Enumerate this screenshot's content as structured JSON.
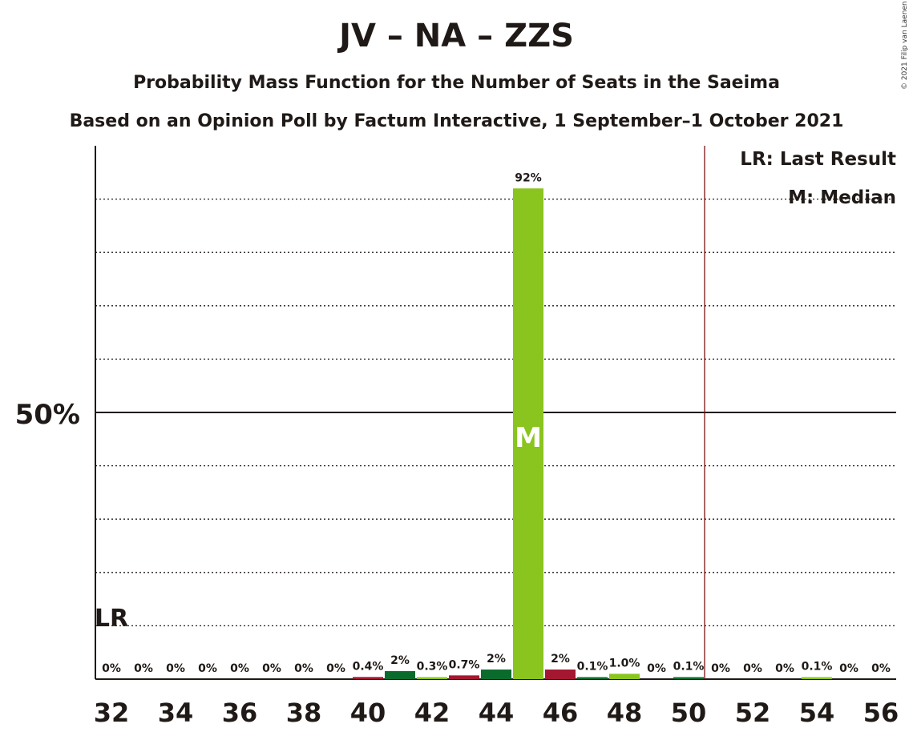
{
  "title": "JV – NA – ZZS",
  "subtitle": "Probability Mass Function for the Number of Seats in the Saeima",
  "subtitle2": "Based on an Opinion Poll by Factum Interactive, 1 September–1 October 2021",
  "copyright": "© 2021 Filip van Laenen",
  "legend": {
    "last_result": "LR: Last Result",
    "median": "M: Median"
  },
  "colors": {
    "light_green": "#8ac41e",
    "dark_green": "#0b6b2d",
    "red": "#a31730",
    "majority_line": "#7a1515"
  },
  "chart_data": {
    "type": "bar",
    "ylabel_tick": "50%",
    "ylim": [
      0,
      100
    ],
    "grid": true,
    "majority_threshold_seats": 50.5,
    "last_result_seats": 32,
    "last_result_label": "LR",
    "median_seats": 45,
    "median_label": "M",
    "x_tick_labels": [
      "32",
      "34",
      "36",
      "38",
      "40",
      "42",
      "44",
      "46",
      "48",
      "50",
      "52",
      "54",
      "56"
    ],
    "bars": [
      {
        "seats": 32,
        "value": 0,
        "label": "0%",
        "color": "none"
      },
      {
        "seats": 33,
        "value": 0,
        "label": "0%",
        "color": "none"
      },
      {
        "seats": 34,
        "value": 0,
        "label": "0%",
        "color": "none"
      },
      {
        "seats": 35,
        "value": 0,
        "label": "0%",
        "color": "none"
      },
      {
        "seats": 36,
        "value": 0,
        "label": "0%",
        "color": "none"
      },
      {
        "seats": 37,
        "value": 0,
        "label": "0%",
        "color": "none"
      },
      {
        "seats": 38,
        "value": 0,
        "label": "0%",
        "color": "none"
      },
      {
        "seats": 39,
        "value": 0,
        "label": "0%",
        "color": "none"
      },
      {
        "seats": 40,
        "value": 0.4,
        "label": "0.4%",
        "color": "red"
      },
      {
        "seats": 41,
        "value": 1.5,
        "label": "2%",
        "color": "dark_green"
      },
      {
        "seats": 42,
        "value": 0.3,
        "label": "0.3%",
        "color": "light_green"
      },
      {
        "seats": 43,
        "value": 0.7,
        "label": "0.7%",
        "color": "red"
      },
      {
        "seats": 44,
        "value": 1.8,
        "label": "2%",
        "color": "dark_green"
      },
      {
        "seats": 45,
        "value": 92,
        "label": "92%",
        "color": "light_green"
      },
      {
        "seats": 46,
        "value": 1.8,
        "label": "2%",
        "color": "red"
      },
      {
        "seats": 47,
        "value": 0.1,
        "label": "0.1%",
        "color": "dark_green"
      },
      {
        "seats": 48,
        "value": 1.0,
        "label": "1.0%",
        "color": "light_green"
      },
      {
        "seats": 49,
        "value": 0,
        "label": "0%",
        "color": "none"
      },
      {
        "seats": 50,
        "value": 0.1,
        "label": "0.1%",
        "color": "dark_green"
      },
      {
        "seats": 51,
        "value": 0,
        "label": "0%",
        "color": "none"
      },
      {
        "seats": 52,
        "value": 0,
        "label": "0%",
        "color": "none"
      },
      {
        "seats": 53,
        "value": 0,
        "label": "0%",
        "color": "none"
      },
      {
        "seats": 54,
        "value": 0.1,
        "label": "0.1%",
        "color": "light_green"
      },
      {
        "seats": 55,
        "value": 0,
        "label": "0%",
        "color": "none"
      },
      {
        "seats": 56,
        "value": 0,
        "label": "0%",
        "color": "none"
      }
    ]
  }
}
